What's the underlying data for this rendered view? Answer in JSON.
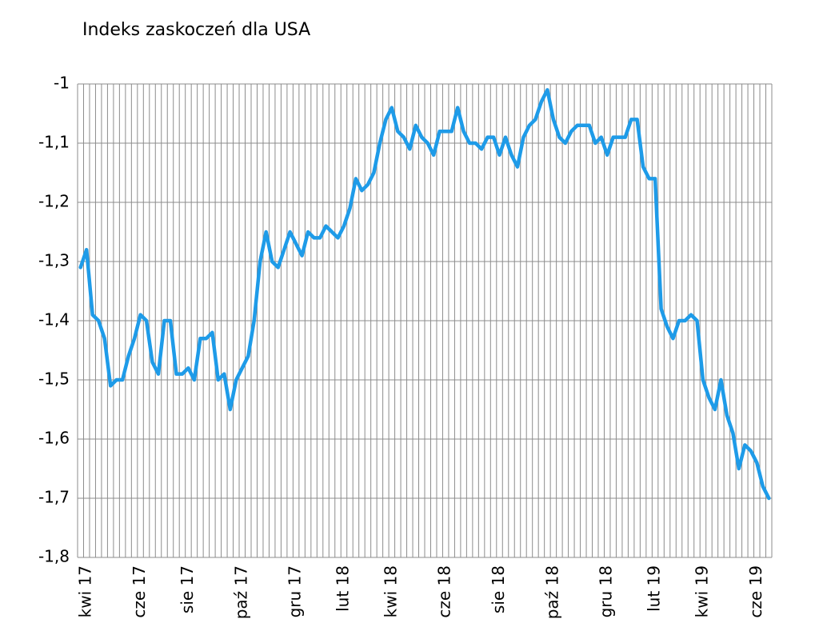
{
  "chart_data": {
    "type": "line",
    "title": "Indeks zaskoczeń dla USA",
    "categories": [
      null,
      "kwi 17",
      null,
      null,
      null,
      null,
      null,
      null,
      null,
      null,
      "cze 17",
      null,
      null,
      null,
      null,
      null,
      null,
      null,
      "sie 17",
      null,
      null,
      null,
      null,
      null,
      null,
      null,
      null,
      "paź 17",
      null,
      null,
      null,
      null,
      null,
      null,
      null,
      null,
      "gru 17",
      null,
      null,
      null,
      null,
      null,
      null,
      null,
      "lut 18",
      null,
      null,
      null,
      null,
      null,
      null,
      null,
      "kwi 18",
      null,
      null,
      null,
      null,
      null,
      null,
      null,
      null,
      "cze 18",
      null,
      null,
      null,
      null,
      null,
      null,
      null,
      null,
      "sie 18",
      null,
      null,
      null,
      null,
      null,
      null,
      null,
      null,
      "paź 18",
      null,
      null,
      null,
      null,
      null,
      null,
      null,
      null,
      "gru 18",
      null,
      null,
      null,
      null,
      null,
      null,
      null,
      "lut 19",
      null,
      null,
      null,
      null,
      null,
      null,
      null,
      "kwi 19",
      null,
      null,
      null,
      null,
      null,
      null,
      null,
      null,
      "cze 19",
      null,
      null
    ],
    "values": [
      -1.31,
      -1.28,
      -1.39,
      -1.4,
      -1.43,
      -1.51,
      -1.5,
      -1.5,
      -1.46,
      -1.43,
      -1.39,
      -1.4,
      -1.47,
      -1.49,
      -1.4,
      -1.4,
      -1.49,
      -1.49,
      -1.48,
      -1.5,
      -1.43,
      -1.43,
      -1.42,
      -1.5,
      -1.49,
      -1.55,
      -1.5,
      -1.48,
      -1.46,
      -1.4,
      -1.3,
      -1.25,
      -1.3,
      -1.31,
      -1.28,
      -1.25,
      -1.27,
      -1.29,
      -1.25,
      -1.26,
      -1.26,
      -1.24,
      -1.25,
      -1.26,
      -1.24,
      -1.21,
      -1.16,
      -1.18,
      -1.17,
      -1.15,
      -1.1,
      -1.06,
      -1.04,
      -1.08,
      -1.09,
      -1.11,
      -1.07,
      -1.09,
      -1.1,
      -1.12,
      -1.08,
      -1.08,
      -1.08,
      -1.04,
      -1.08,
      -1.1,
      -1.1,
      -1.11,
      -1.09,
      -1.09,
      -1.12,
      -1.09,
      -1.12,
      -1.14,
      -1.09,
      -1.07,
      -1.06,
      -1.03,
      -1.01,
      -1.06,
      -1.09,
      -1.1,
      -1.08,
      -1.07,
      -1.07,
      -1.07,
      -1.1,
      -1.09,
      -1.12,
      -1.09,
      -1.09,
      -1.09,
      -1.06,
      -1.06,
      -1.14,
      -1.16,
      -1.16,
      -1.38,
      -1.41,
      -1.43,
      -1.4,
      -1.4,
      -1.39,
      -1.4,
      -1.5,
      -1.53,
      -1.55,
      -1.5,
      -1.56,
      -1.59,
      -1.65,
      -1.61,
      -1.62,
      -1.64,
      -1.68,
      -1.7
    ],
    "color": "#1e9be8",
    "ylim": [
      -1.8,
      -1
    ],
    "yticks": [
      {
        "value": -1.8,
        "label": "-1,8"
      },
      {
        "value": -1.7,
        "label": "-1,7"
      },
      {
        "value": -1.6,
        "label": "-1,6"
      },
      {
        "value": -1.5,
        "label": "-1,5"
      },
      {
        "value": -1.4,
        "label": "-1,4"
      },
      {
        "value": -1.3,
        "label": "-1,3"
      },
      {
        "value": -1.2,
        "label": "-1,2"
      },
      {
        "value": -1.1,
        "label": "-1,1"
      },
      -1
    ],
    "grid": true
  }
}
